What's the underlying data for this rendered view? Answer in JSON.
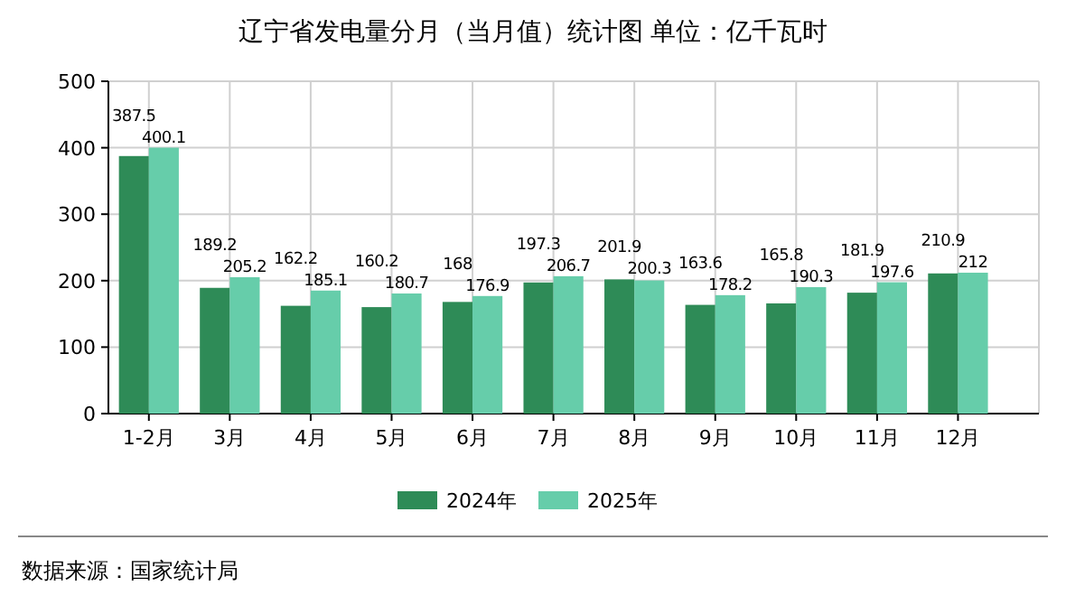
{
  "chart_data": {
    "type": "bar",
    "title": "辽宁省发电量分月（当月值）统计图 单位：亿千瓦时",
    "categories": [
      "1-2月",
      "3月",
      "4月",
      "5月",
      "6月",
      "7月",
      "8月",
      "9月",
      "10月",
      "11月",
      "12月"
    ],
    "series": [
      {
        "name": "2024年",
        "color": "#2e8b57",
        "values": [
          387.5,
          189.2,
          162.2,
          160.2,
          168,
          197.3,
          201.9,
          163.6,
          165.8,
          181.9,
          210.9
        ]
      },
      {
        "name": "2025年",
        "color": "#66cdaa",
        "values": [
          400.1,
          205.2,
          185.1,
          180.7,
          176.9,
          206.7,
          200.3,
          178.2,
          190.3,
          197.6,
          212
        ]
      }
    ],
    "ylim": [
      0,
      500
    ],
    "yticks": [
      0,
      100,
      200,
      300,
      400,
      500
    ],
    "grid": true,
    "legend": "bottom",
    "data_labels": true,
    "annotations": [
      "数据来源：国家统计局"
    ]
  }
}
